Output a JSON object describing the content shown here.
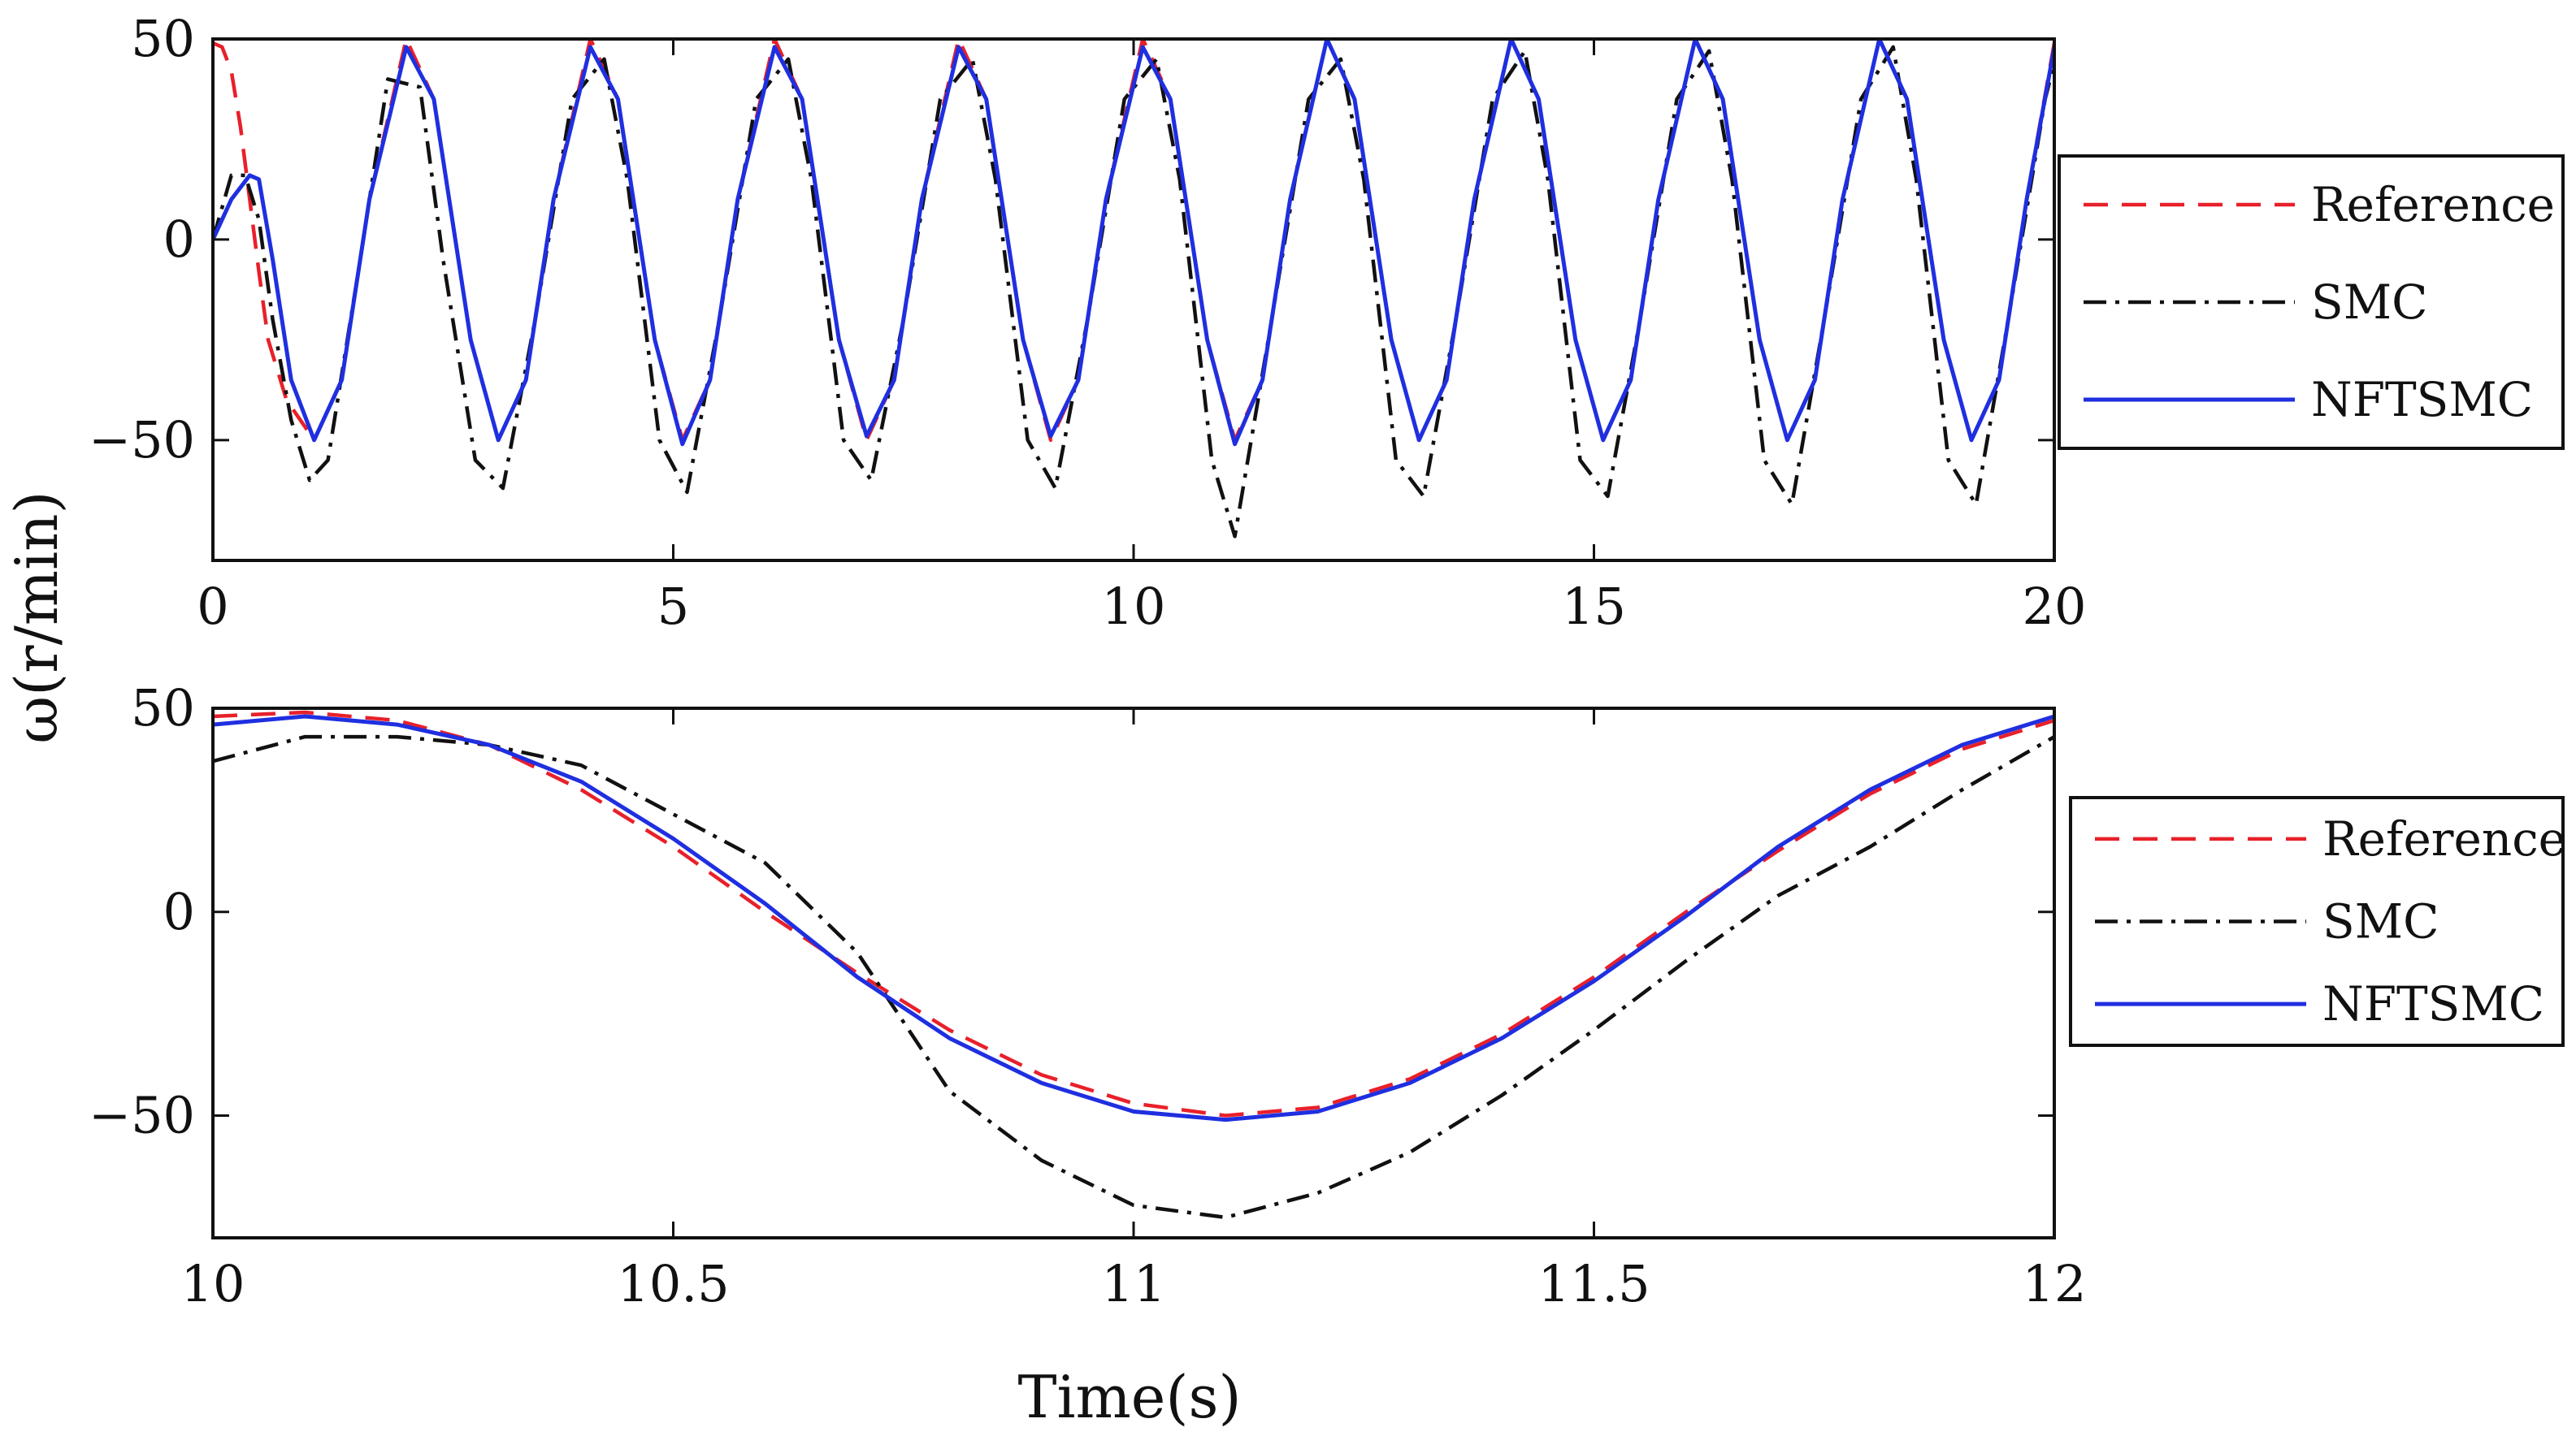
{
  "chart_data": {
    "type": "line",
    "ylabel": "ω(r/min)",
    "xlabel": "Time(s)",
    "colors": {
      "Reference": "#e8202a",
      "SMC": "#111111",
      "NFTSMC": "#1f2fe0",
      "axes": "#111111"
    },
    "panels": [
      {
        "name": "full-response",
        "xlim": [
          0,
          20
        ],
        "ylim": [
          -80,
          50
        ],
        "xticks": [
          0,
          5,
          10,
          15,
          20
        ],
        "xtick_labels": [
          "0",
          "5",
          "10",
          "15",
          "20"
        ],
        "yticks": [
          -50,
          0,
          50
        ],
        "ytick_labels": [
          "−50",
          "0",
          "50"
        ],
        "legend": {
          "position": "right",
          "entries": [
            "Reference",
            "SMC",
            "NFTSMC"
          ]
        },
        "series": [
          {
            "name": "Reference",
            "style": "dashed",
            "x": [
              0,
              0.1,
              0.2,
              0.3,
              0.4,
              0.5,
              0.6,
              0.8,
              1.1,
              1.4,
              1.7,
              2.1,
              2.4,
              2.8,
              3.1,
              3.4,
              3.7,
              4.1,
              4.4,
              4.8,
              5.1,
              5.4,
              5.7,
              6.1,
              6.4,
              6.8,
              7.1,
              7.4,
              7.7,
              8.1,
              8.4,
              8.8,
              9.1,
              9.4,
              9.7,
              10.1,
              10.4,
              10.8,
              11.1,
              11.4,
              11.7,
              12.1,
              12.4,
              12.8,
              13.1,
              13.4,
              13.7,
              14.1,
              14.4,
              14.8,
              15.1,
              15.4,
              15.7,
              16.1,
              16.4,
              16.8,
              17.1,
              17.4,
              17.7,
              18.1,
              18.4,
              18.8,
              19.1,
              19.4,
              19.7,
              20
            ],
            "y": [
              49,
              48,
              42,
              28,
              10,
              -8,
              -25,
              -40,
              -50,
              -35,
              10,
              50,
              35,
              -25,
              -50,
              -35,
              10,
              50,
              35,
              -25,
              -50,
              -35,
              10,
              50,
              35,
              -25,
              -50,
              -35,
              10,
              50,
              35,
              -25,
              -50,
              -35,
              10,
              50,
              35,
              -25,
              -50,
              -35,
              10,
              50,
              35,
              -25,
              -50,
              -35,
              10,
              50,
              35,
              -25,
              -50,
              -35,
              10,
              50,
              35,
              -25,
              -50,
              -35,
              10,
              50,
              35,
              -25,
              -50,
              -35,
              10,
              49
            ]
          },
          {
            "name": "SMC",
            "style": "dashdot",
            "x": [
              0,
              0.2,
              0.35,
              0.5,
              0.65,
              0.85,
              1.05,
              1.25,
              1.6,
              1.9,
              2.25,
              2.5,
              2.85,
              3.15,
              3.5,
              3.9,
              4.25,
              4.5,
              4.85,
              5.15,
              5.5,
              5.9,
              6.25,
              6.5,
              6.85,
              7.15,
              7.5,
              7.9,
              8.25,
              8.5,
              8.85,
              9.15,
              9.5,
              9.9,
              10.25,
              10.5,
              10.85,
              11.1,
              11.5,
              11.9,
              12.25,
              12.5,
              12.85,
              13.15,
              13.5,
              13.9,
              14.25,
              14.5,
              14.85,
              15.15,
              15.5,
              15.9,
              16.25,
              16.5,
              16.85,
              17.15,
              17.5,
              17.9,
              18.25,
              18.5,
              18.85,
              19.15,
              19.5,
              19.9,
              20
            ],
            "y": [
              0,
              16,
              16,
              5,
              -20,
              -45,
              -60,
              -55,
              -5,
              40,
              38,
              -5,
              -55,
              -62,
              -20,
              35,
              45,
              15,
              -50,
              -63,
              -20,
              35,
              45,
              15,
              -50,
              -60,
              -20,
              35,
              45,
              15,
              -50,
              -62,
              -20,
              35,
              45,
              15,
              -55,
              -74,
              -20,
              35,
              45,
              15,
              -55,
              -64,
              -20,
              35,
              47,
              15,
              -55,
              -64,
              -20,
              35,
              47,
              15,
              -55,
              -66,
              -20,
              35,
              48,
              15,
              -55,
              -66,
              -20,
              35,
              44
            ]
          },
          {
            "name": "NFTSMC",
            "style": "solid",
            "x": [
              0,
              0.2,
              0.4,
              0.5,
              0.65,
              0.85,
              1.1,
              1.4,
              1.7,
              2.1,
              2.4,
              2.8,
              3.1,
              3.4,
              3.7,
              4.1,
              4.4,
              4.8,
              5.1,
              5.4,
              5.7,
              6.1,
              6.4,
              6.8,
              7.1,
              7.4,
              7.7,
              8.1,
              8.4,
              8.8,
              9.1,
              9.4,
              9.7,
              10.1,
              10.4,
              10.8,
              11.1,
              11.4,
              11.7,
              12.1,
              12.4,
              12.8,
              13.1,
              13.4,
              13.7,
              14.1,
              14.4,
              14.8,
              15.1,
              15.4,
              15.7,
              16.1,
              16.4,
              16.8,
              17.1,
              17.4,
              17.7,
              18.1,
              18.4,
              18.8,
              19.1,
              19.4,
              19.7,
              20
            ],
            "y": [
              0,
              10,
              16,
              15,
              -5,
              -35,
              -50,
              -35,
              10,
              48,
              35,
              -25,
              -50,
              -35,
              10,
              48,
              35,
              -25,
              -51,
              -35,
              10,
              48,
              35,
              -25,
              -49,
              -35,
              10,
              48,
              35,
              -25,
              -49,
              -35,
              10,
              48,
              35,
              -25,
              -51,
              -35,
              10,
              50,
              35,
              -25,
              -50,
              -35,
              10,
              50,
              35,
              -25,
              -50,
              -35,
              10,
              50,
              35,
              -25,
              -50,
              -35,
              10,
              50,
              35,
              -25,
              -50,
              -35,
              10,
              48
            ]
          }
        ]
      },
      {
        "name": "zoomed-response",
        "xlim": [
          10,
          12
        ],
        "ylim": [
          -80,
          50
        ],
        "xticks": [
          10,
          10.5,
          11,
          11.5,
          12
        ],
        "xtick_labels": [
          "10",
          "10.5",
          "11",
          "11.5",
          "12"
        ],
        "yticks": [
          -50,
          0,
          50
        ],
        "ytick_labels": [
          "−50",
          "0",
          "50"
        ],
        "legend": {
          "position": "right",
          "entries": [
            "Reference",
            "SMC",
            "NFTSMC"
          ]
        },
        "series": [
          {
            "name": "Reference",
            "style": "dashed",
            "x": [
              10,
              10.1,
              10.2,
              10.3,
              10.4,
              10.5,
              10.6,
              10.7,
              10.8,
              10.9,
              11,
              11.1,
              11.2,
              11.3,
              11.4,
              11.5,
              11.6,
              11.7,
              11.8,
              11.9,
              12
            ],
            "y": [
              48,
              49,
              47,
              41,
              30,
              16,
              0,
              -15,
              -29,
              -40,
              -47,
              -50,
              -48,
              -41,
              -30,
              -16,
              0,
              15,
              29,
              40,
              47
            ]
          },
          {
            "name": "SMC",
            "style": "dashdot",
            "x": [
              10,
              10.1,
              10.2,
              10.3,
              10.4,
              10.5,
              10.6,
              10.7,
              10.8,
              10.9,
              11,
              11.1,
              11.2,
              11.3,
              11.4,
              11.5,
              11.6,
              11.7,
              11.8,
              11.9,
              12
            ],
            "y": [
              37,
              43,
              43,
              41,
              36,
              24,
              12,
              -10,
              -44,
              -61,
              -72,
              -75,
              -69,
              -59,
              -45,
              -29,
              -12,
              4,
              16,
              30,
              43
            ]
          },
          {
            "name": "NFTSMC",
            "style": "solid",
            "x": [
              10,
              10.1,
              10.2,
              10.3,
              10.4,
              10.5,
              10.6,
              10.7,
              10.8,
              10.9,
              11,
              11.1,
              11.2,
              11.3,
              11.4,
              11.5,
              11.6,
              11.7,
              11.8,
              11.9,
              12
            ],
            "y": [
              46,
              48,
              46,
              41,
              32,
              18,
              2,
              -16,
              -31,
              -42,
              -49,
              -51,
              -49,
              -42,
              -31,
              -17,
              -1,
              16,
              30,
              41,
              48
            ]
          }
        ]
      }
    ]
  }
}
